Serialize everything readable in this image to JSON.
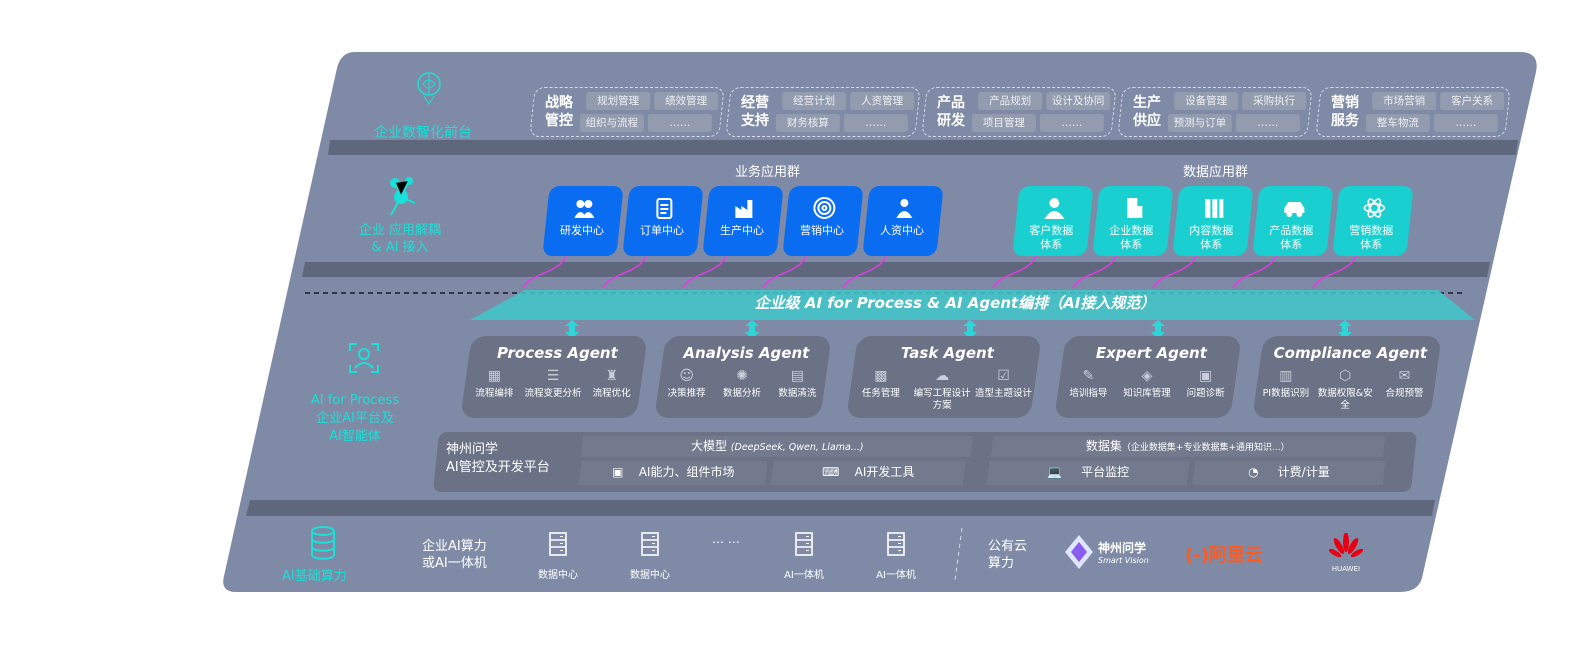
{
  "layers": {
    "front": {
      "label": "企业数智化前台",
      "groups": [
        {
          "title": "战略管控",
          "items": [
            "规划管理",
            "绩效管理",
            "组织与流程",
            "……"
          ]
        },
        {
          "title": "经营支持",
          "items": [
            "经营计划",
            "人资管理",
            "财务核算",
            "……"
          ]
        },
        {
          "title": "产品研发",
          "items": [
            "产品规划",
            "设计及协同",
            "项目管理",
            "……"
          ]
        },
        {
          "title": "生产供应",
          "items": [
            "设备管理",
            "采购执行",
            "预测与订单",
            "……"
          ]
        },
        {
          "title": "营销服务",
          "items": [
            "市场营销",
            "客户关系",
            "整车物流",
            "……"
          ]
        }
      ]
    },
    "apps": {
      "label_line1": "企业 应用解耦",
      "label_line2": "& AI 接入",
      "business_title": "业务应用群",
      "data_title": "数据应用群",
      "business": [
        {
          "label": "研发中心",
          "icon": "users-icon"
        },
        {
          "label": "订单中心",
          "icon": "clipboard-icon"
        },
        {
          "label": "生产中心",
          "icon": "factory-icon"
        },
        {
          "label": "营销中心",
          "icon": "target-icon"
        },
        {
          "label": "人资中心",
          "icon": "person-icon"
        }
      ],
      "data": [
        {
          "label": "客户数据体系",
          "icon": "user-icon"
        },
        {
          "label": "企业数据体系",
          "icon": "building-icon"
        },
        {
          "label": "内容数据体系",
          "icon": "books-icon"
        },
        {
          "label": "产品数据体系",
          "icon": "car-icon"
        },
        {
          "label": "营销数据体系",
          "icon": "atom-icon"
        }
      ]
    },
    "orchestration": {
      "banner": "企业级 AI for Process & AI Agent编排（AI接入规范）"
    },
    "ai": {
      "label_line1": "AI for Process",
      "label_line2": "企业AI平台及",
      "label_line3": "AI智能体",
      "agents": [
        {
          "name": "Process Agent",
          "items": [
            "流程编排",
            "流程变更分析",
            "流程优化"
          ]
        },
        {
          "name": "Analysis Agent",
          "items": [
            "决策推荐",
            "数据分析",
            "数据清洗"
          ]
        },
        {
          "name": "Task Agent",
          "items": [
            "任务管理",
            "编写工程设计方案",
            "造型主题设计"
          ]
        },
        {
          "name": "Expert Agent",
          "items": [
            "培训指导",
            "知识库管理",
            "问题诊断"
          ]
        },
        {
          "name": "Compliance Agent",
          "items": [
            "PI数据识别",
            "数据权限&安全",
            "合规预警"
          ]
        }
      ],
      "platform": {
        "title_line1": "神州问学",
        "title_line2": "AI管控及开发平台",
        "model": "大模型",
        "model_note": "(DeepSeek, Qwen, Llama...)",
        "dataset": "数据集",
        "dataset_note": "（企业数据集+专业数据集+通用知识...）",
        "tools": [
          "AI能力、组件市场",
          "AI开发工具",
          "平台监控",
          "计费/计量"
        ]
      }
    },
    "compute": {
      "label": "AI基础算力",
      "private_line1": "企业AI算力",
      "private_line2": "或AI一体机",
      "nodes": [
        "数据中心",
        "数据中心",
        "AI一体机",
        "AI一体机"
      ],
      "ellipsis": "… …",
      "public_line1": "公有云",
      "public_line2": "算力",
      "vendors": {
        "smartvision": "神州问学",
        "smartvision_en": "Smart Vision",
        "aliyun": "阿里云",
        "huawei": "HUAWEI"
      }
    }
  },
  "colors": {
    "panel": "#7f8ba6",
    "band": "#5f677c",
    "cyan": "#19e0d8",
    "blue": "#0a6cf0",
    "teal": "#19cfcf",
    "magenta": "#e23ce6"
  }
}
